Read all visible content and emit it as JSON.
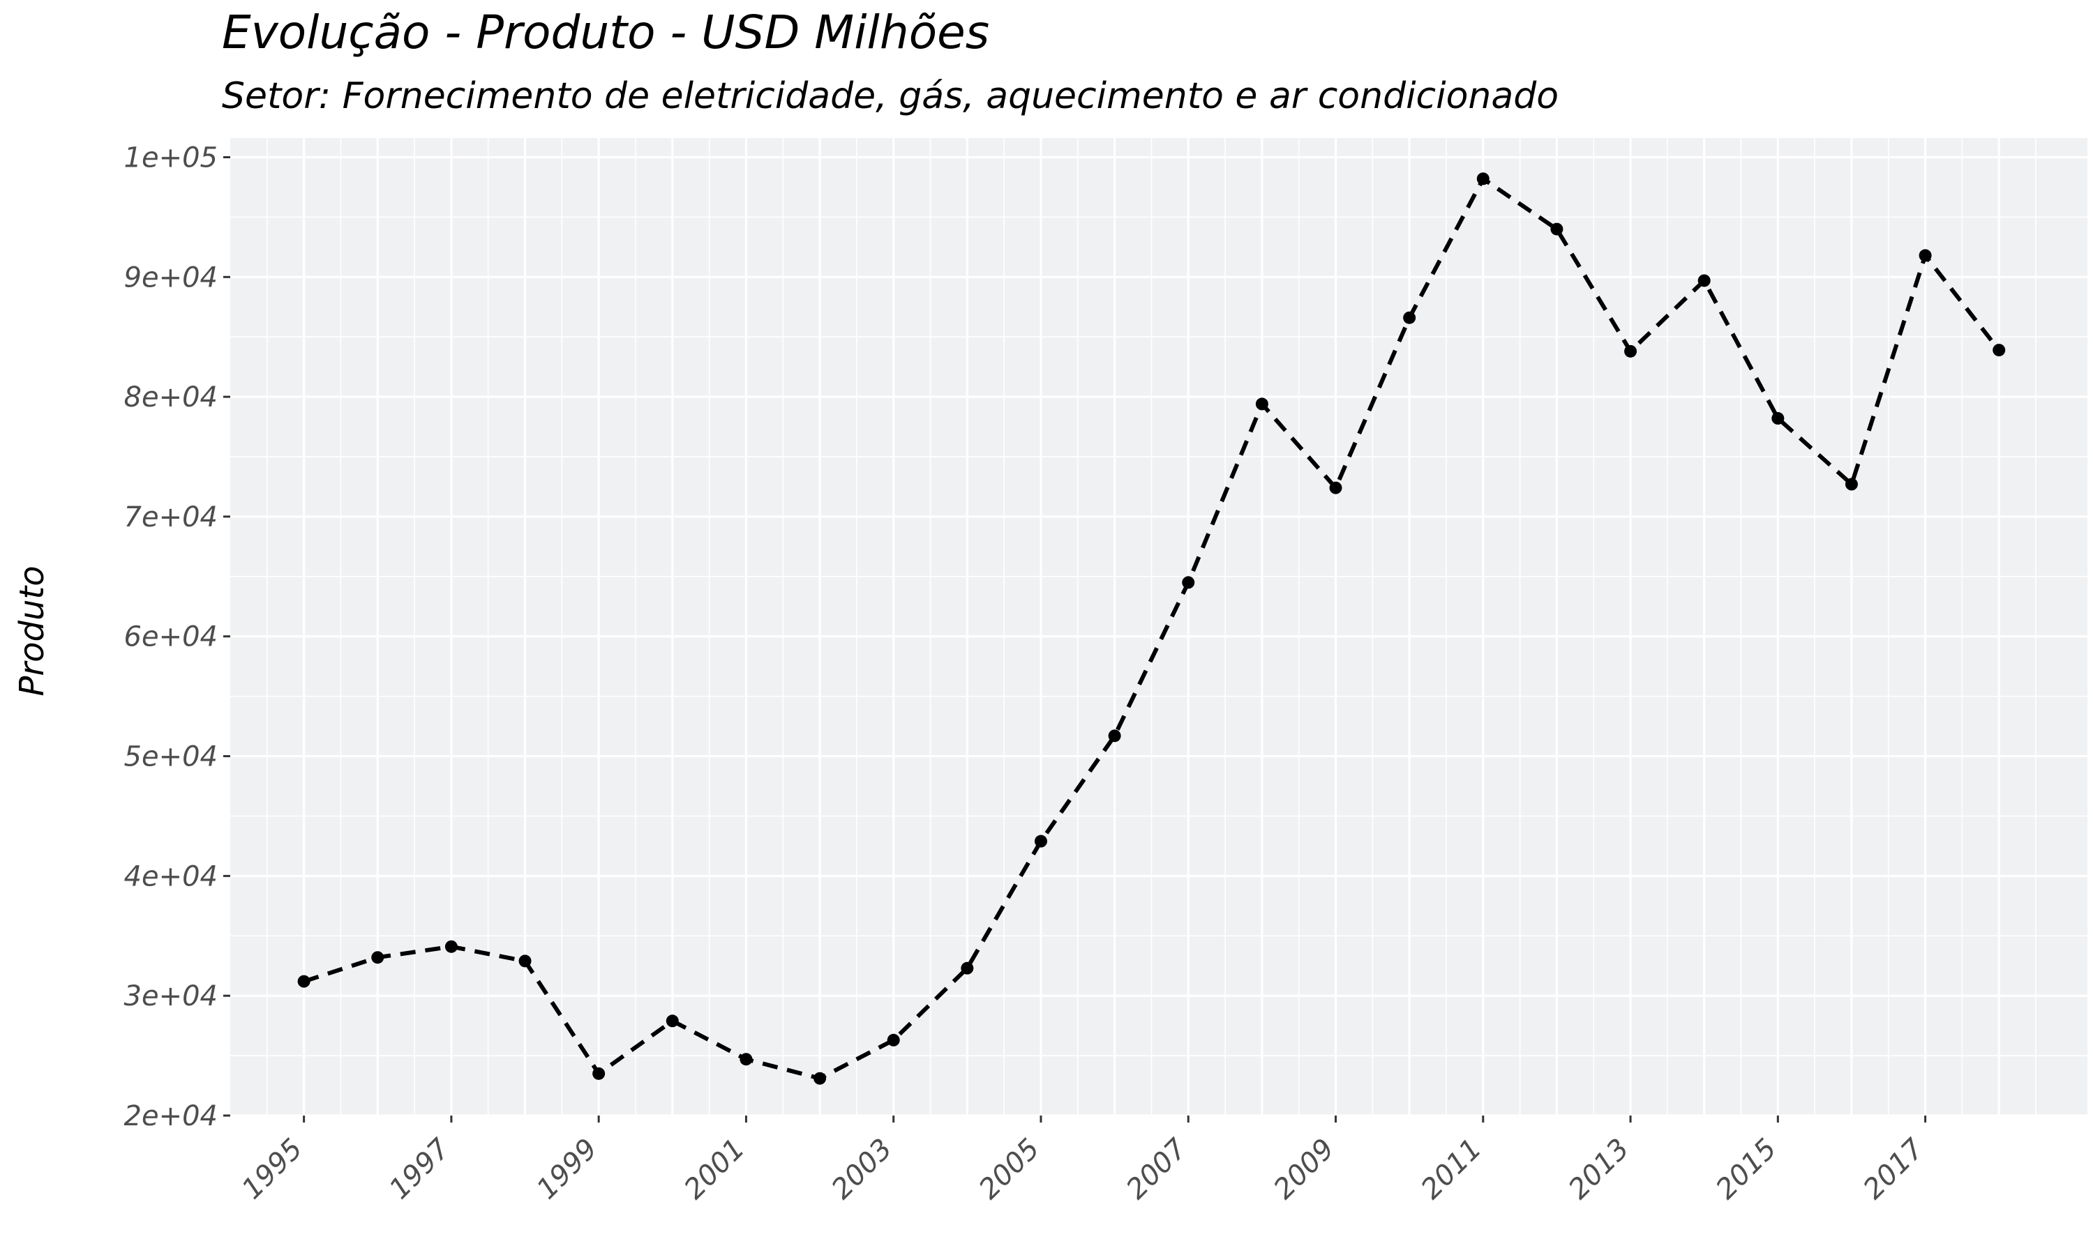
{
  "chart_data": {
    "type": "line",
    "title": "Evolução - Produto - USD Milhões",
    "subtitle": "Setor: Fornecimento de eletricidade, gás, aquecimento e ar condicionado",
    "xlabel": "",
    "ylabel": "Produto",
    "x": [
      1995,
      1996,
      1997,
      1998,
      1999,
      2000,
      2001,
      2002,
      2003,
      2004,
      2005,
      2006,
      2007,
      2008,
      2009,
      2010,
      2011,
      2012,
      2013,
      2014,
      2015,
      2016,
      2017,
      2018
    ],
    "series": [
      {
        "values": [
          31200,
          33200,
          34100,
          32900,
          23500,
          27900,
          24700,
          23100,
          26300,
          32300,
          42900,
          51700,
          64500,
          79400,
          72400,
          86600,
          98200,
          94000,
          83800,
          89700,
          78200,
          72700,
          91800,
          83900
        ]
      }
    ],
    "xticks": [
      "1995",
      "1997",
      "1999",
      "2001",
      "2003",
      "2005",
      "2007",
      "2009",
      "2011",
      "2013",
      "2015",
      "2017"
    ],
    "yticks": [
      "2e+04",
      "3e+04",
      "4e+04",
      "5e+04",
      "6e+04",
      "7e+04",
      "8e+04",
      "9e+04",
      "1e+05"
    ],
    "ytick_values": [
      20000,
      30000,
      40000,
      50000,
      60000,
      70000,
      80000,
      90000,
      100000
    ],
    "xlim": [
      1994,
      2019.2
    ],
    "ylim": [
      20000,
      101600
    ],
    "line_style": "dashed",
    "line_color": "#000000",
    "panel_background": "#f0f1f3",
    "grid_color": "#ffffff",
    "grid": true,
    "legend": "none"
  }
}
